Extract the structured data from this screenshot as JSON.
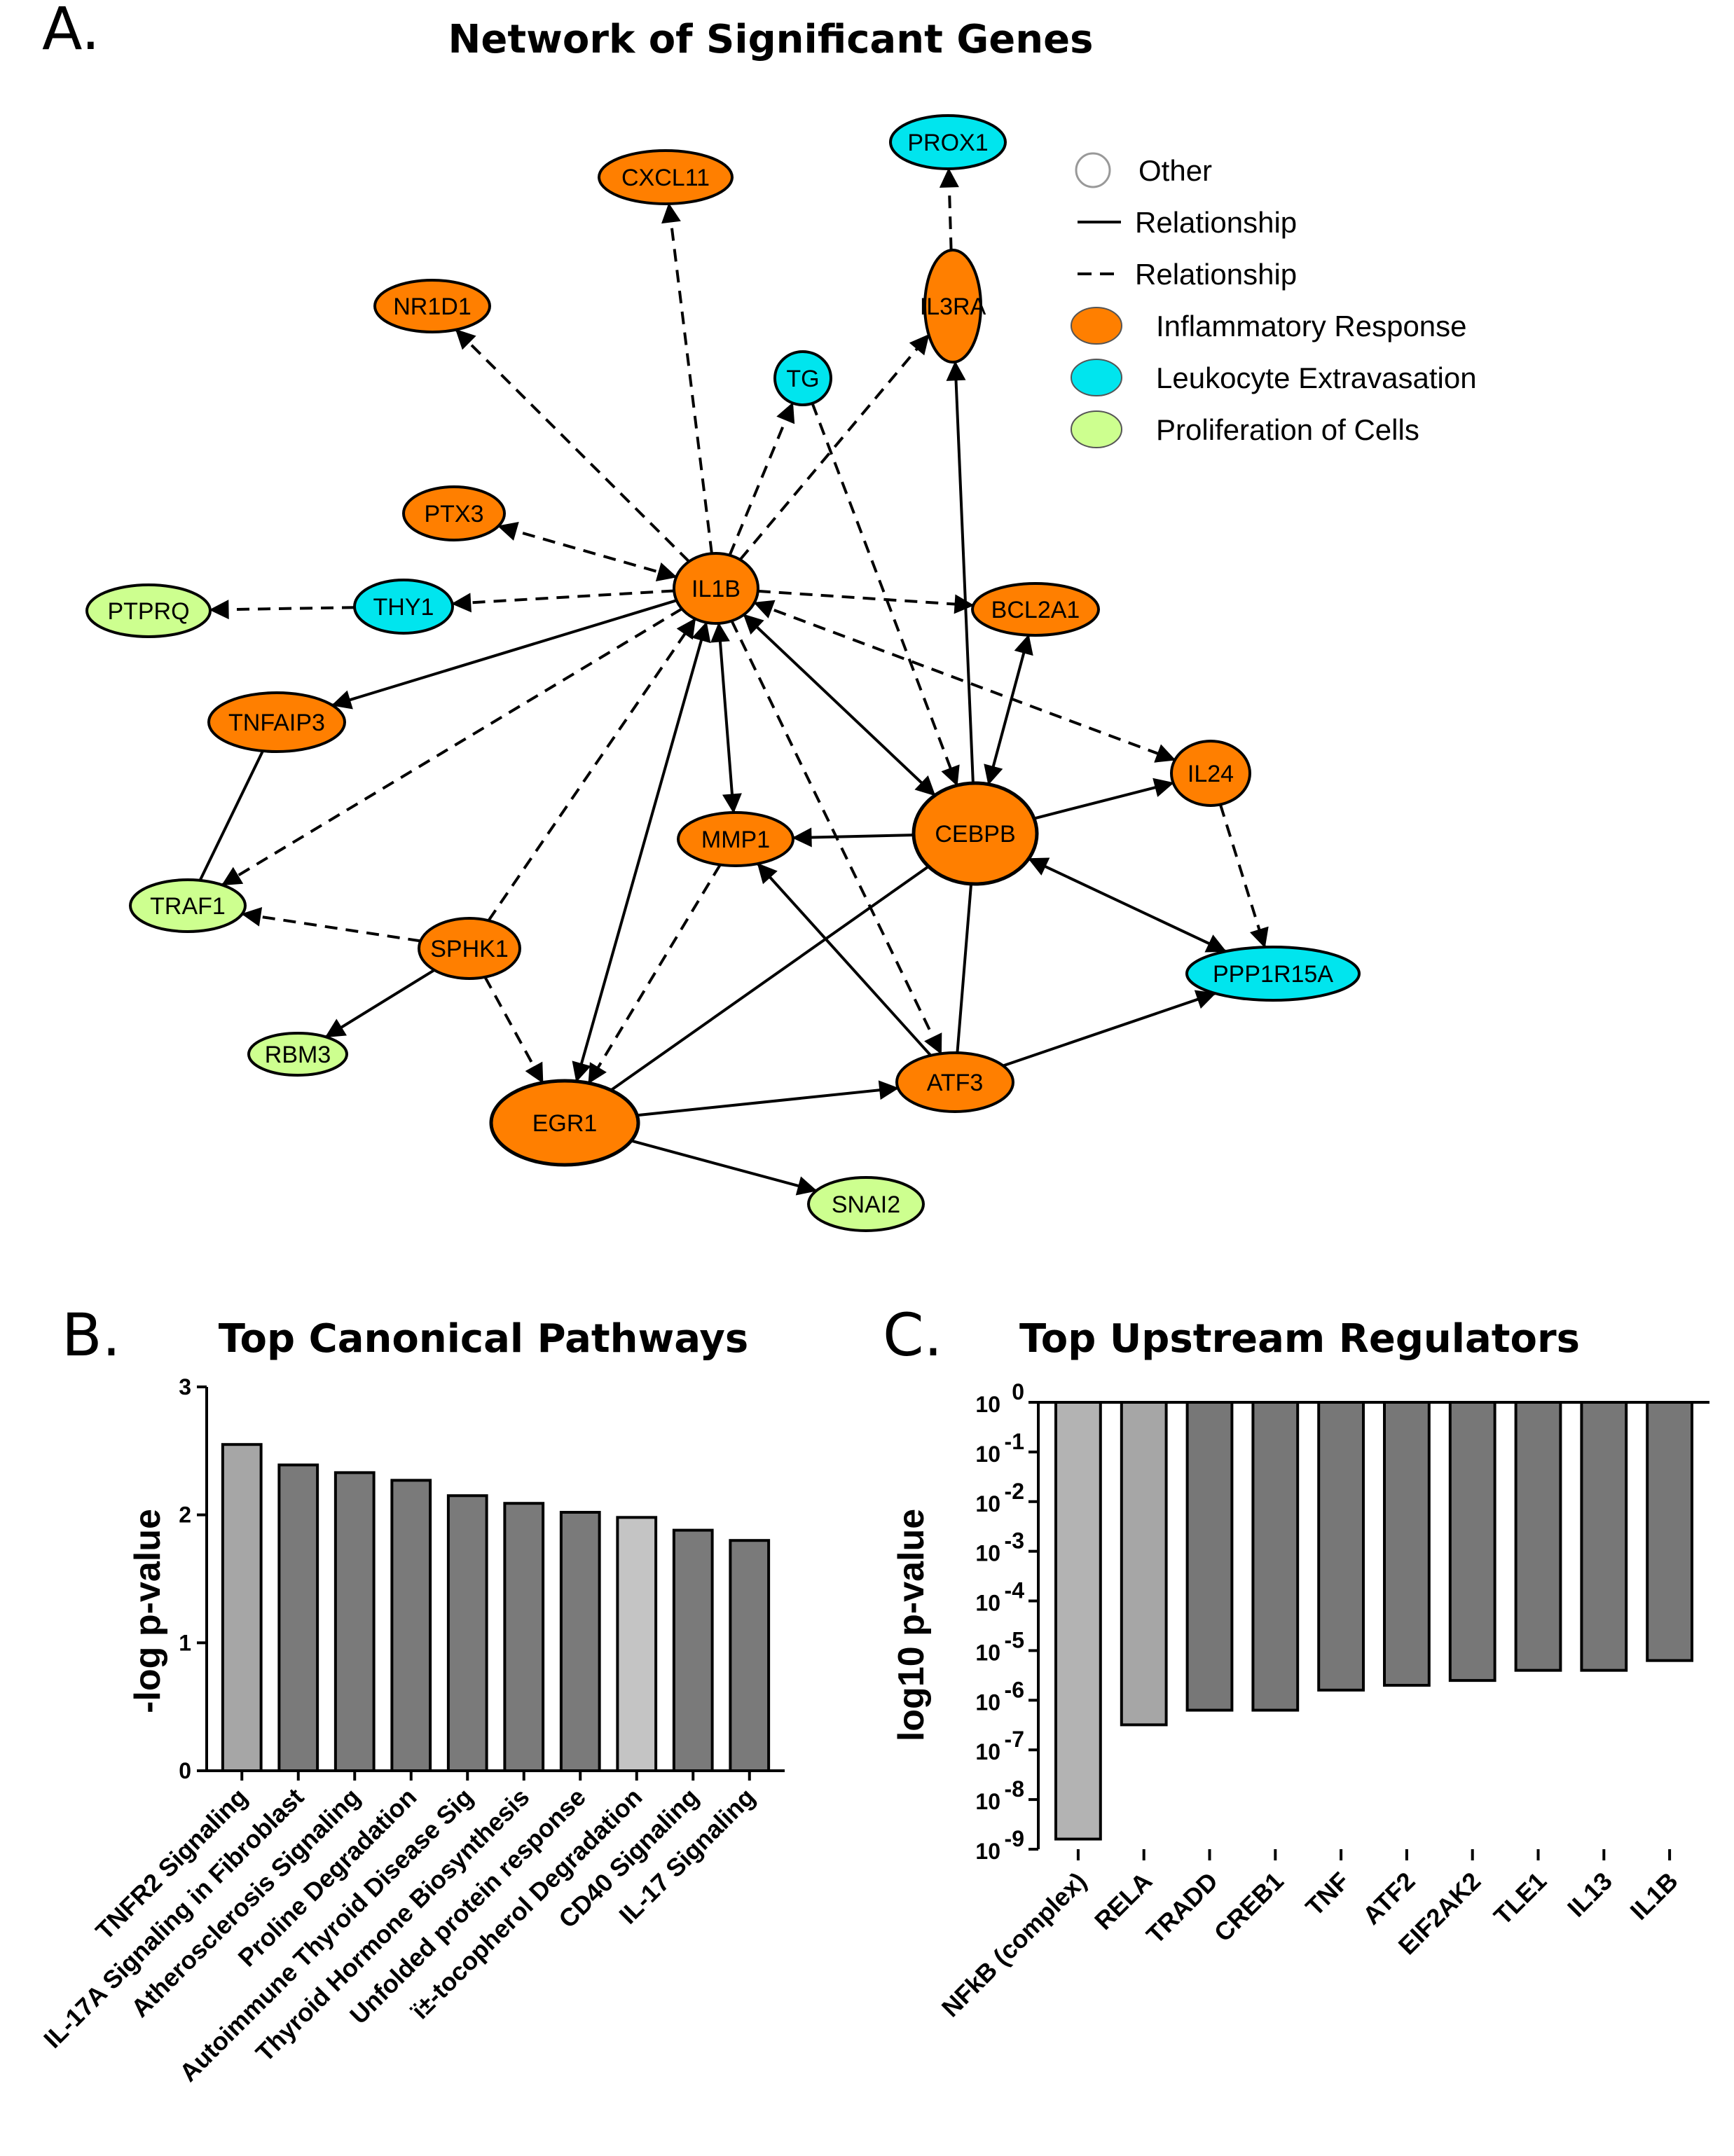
{
  "panel_a": {
    "letter": "A.",
    "title": "Network of Significant Genes",
    "legend": [
      {
        "key": "other",
        "label": "Other",
        "swatch": "circle-white"
      },
      {
        "key": "rel-solid",
        "label": "Relationship",
        "swatch": "line-solid"
      },
      {
        "key": "rel-dashed",
        "label": "Relationship",
        "swatch": "line-dashed"
      },
      {
        "key": "inflammatory",
        "label": "Inflammatory Response",
        "swatch": "#ff7f00"
      },
      {
        "key": "leukocyte",
        "label": "Leukocyte Extravasation",
        "swatch": "#00e5ee"
      },
      {
        "key": "proliferation",
        "label": "Proliferation of Cells",
        "swatch": "#cdff8f"
      }
    ],
    "nodes": [
      {
        "id": "PROX1",
        "label": "PROX1",
        "category": "leukocyte"
      },
      {
        "id": "CXCL11",
        "label": "CXCL11",
        "category": "inflammatory"
      },
      {
        "id": "IL3RA",
        "label": "IL3RA",
        "category": "inflammatory"
      },
      {
        "id": "NR1D1",
        "label": "NR1D1",
        "category": "inflammatory"
      },
      {
        "id": "TG",
        "label": "TG",
        "category": "leukocyte"
      },
      {
        "id": "PTX3",
        "label": "PTX3",
        "category": "inflammatory"
      },
      {
        "id": "IL1B",
        "label": "IL1B",
        "category": "inflammatory"
      },
      {
        "id": "PTPRQ",
        "label": "PTPRQ",
        "category": "proliferation"
      },
      {
        "id": "THY1",
        "label": "THY1",
        "category": "leukocyte"
      },
      {
        "id": "BCL2A1",
        "label": "BCL2A1",
        "category": "inflammatory"
      },
      {
        "id": "TNFAIP3",
        "label": "TNFAIP3",
        "category": "inflammatory"
      },
      {
        "id": "IL24",
        "label": "IL24",
        "category": "inflammatory"
      },
      {
        "id": "CEBPB",
        "label": "CEBPB",
        "category": "inflammatory"
      },
      {
        "id": "MMP1",
        "label": "MMP1",
        "category": "inflammatory"
      },
      {
        "id": "TRAF1",
        "label": "TRAF1",
        "category": "proliferation"
      },
      {
        "id": "SPHK1",
        "label": "SPHK1",
        "category": "inflammatory"
      },
      {
        "id": "PPP1R15A",
        "label": "PPP1R15A",
        "category": "leukocyte"
      },
      {
        "id": "RBM3",
        "label": "RBM3",
        "category": "proliferation"
      },
      {
        "id": "ATF3",
        "label": "ATF3",
        "category": "inflammatory"
      },
      {
        "id": "EGR1",
        "label": "EGR1",
        "category": "inflammatory"
      },
      {
        "id": "SNAI2",
        "label": "SNAI2",
        "category": "proliferation"
      }
    ],
    "edges": [
      {
        "from": "IL3RA",
        "to": "PROX1",
        "style": "dashed",
        "arrow": "end"
      },
      {
        "from": "IL1B",
        "to": "CXCL11",
        "style": "dashed",
        "arrow": "end"
      },
      {
        "from": "IL1B",
        "to": "NR1D1",
        "style": "dashed",
        "arrow": "end"
      },
      {
        "from": "IL1B",
        "to": "TG",
        "style": "dashed",
        "arrow": "end"
      },
      {
        "from": "IL1B",
        "to": "IL3RA",
        "style": "dashed",
        "arrow": "end"
      },
      {
        "from": "IL1B",
        "to": "PTX3",
        "style": "dashed",
        "arrow": "both"
      },
      {
        "from": "IL1B",
        "to": "THY1",
        "style": "dashed",
        "arrow": "end"
      },
      {
        "from": "THY1",
        "to": "PTPRQ",
        "style": "dashed",
        "arrow": "end"
      },
      {
        "from": "IL1B",
        "to": "BCL2A1",
        "style": "dashed",
        "arrow": "end"
      },
      {
        "from": "IL1B",
        "to": "IL24",
        "style": "dashed",
        "arrow": "both"
      },
      {
        "from": "IL1B",
        "to": "TNFAIP3",
        "style": "solid",
        "arrow": "end"
      },
      {
        "from": "IL1B",
        "to": "TRAF1",
        "style": "dashed",
        "arrow": "end"
      },
      {
        "from": "IL1B",
        "to": "MMP1",
        "style": "solid",
        "arrow": "both"
      },
      {
        "from": "IL1B",
        "to": "CEBPB",
        "style": "solid",
        "arrow": "both"
      },
      {
        "from": "IL1B",
        "to": "EGR1",
        "style": "solid",
        "arrow": "both"
      },
      {
        "from": "IL1B",
        "to": "ATF3",
        "style": "dashed",
        "arrow": "end"
      },
      {
        "from": "SPHK1",
        "to": "IL1B",
        "style": "dashed",
        "arrow": "end"
      },
      {
        "from": "TG",
        "to": "CEBPB",
        "style": "dashed",
        "arrow": "end"
      },
      {
        "from": "CEBPB",
        "to": "IL3RA",
        "style": "solid",
        "arrow": "end"
      },
      {
        "from": "CEBPB",
        "to": "BCL2A1",
        "style": "solid",
        "arrow": "both"
      },
      {
        "from": "CEBPB",
        "to": "IL24",
        "style": "solid",
        "arrow": "end"
      },
      {
        "from": "CEBPB",
        "to": "MMP1",
        "style": "solid",
        "arrow": "end"
      },
      {
        "from": "CEBPB",
        "to": "PPP1R15A",
        "style": "solid",
        "arrow": "both"
      },
      {
        "from": "CEBPB",
        "to": "EGR1",
        "style": "solid",
        "arrow": "none"
      },
      {
        "from": "CEBPB",
        "to": "ATF3",
        "style": "solid",
        "arrow": "none"
      },
      {
        "from": "IL24",
        "to": "PPP1R15A",
        "style": "dashed",
        "arrow": "end"
      },
      {
        "from": "TNFAIP3",
        "to": "TRAF1",
        "style": "solid",
        "arrow": "none"
      },
      {
        "from": "SPHK1",
        "to": "TRAF1",
        "style": "dashed",
        "arrow": "end"
      },
      {
        "from": "SPHK1",
        "to": "RBM3",
        "style": "solid",
        "arrow": "end"
      },
      {
        "from": "SPHK1",
        "to": "EGR1",
        "style": "dashed",
        "arrow": "end"
      },
      {
        "from": "MMP1",
        "to": "EGR1",
        "style": "dashed",
        "arrow": "end"
      },
      {
        "from": "ATF3",
        "to": "MMP1",
        "style": "solid",
        "arrow": "end"
      },
      {
        "from": "EGR1",
        "to": "ATF3",
        "style": "solid",
        "arrow": "end"
      },
      {
        "from": "ATF3",
        "to": "PPP1R15A",
        "style": "solid",
        "arrow": "end"
      },
      {
        "from": "EGR1",
        "to": "SNAI2",
        "style": "solid",
        "arrow": "end"
      }
    ]
  },
  "chart_data": [
    {
      "panel": "B.",
      "type": "bar",
      "title": "Top Canonical Pathways",
      "ylabel": "-log p-value",
      "ylim": [
        0,
        3
      ],
      "yticks": [
        "0",
        "1",
        "2",
        "3"
      ],
      "categories": [
        "TNFR2 Signaling",
        "IL-17A Signaling in Fibroblast",
        "Atherosclerosis Signaling",
        "Proline Degradation",
        "Autoimmune Thyroid Disease Sig",
        "Thyroid Hormone Biosynthesis",
        "Unfolded protein response",
        "ï±-tocopherol Degradation",
        "CD40 Signaling",
        "IL-17 Signaling"
      ],
      "values": [
        2.55,
        2.39,
        2.33,
        2.27,
        2.15,
        2.09,
        2.02,
        1.98,
        1.88,
        1.8
      ],
      "bar_colors": [
        "#a6a6a6",
        "#7a7a7a",
        "#7a7a7a",
        "#7a7a7a",
        "#7a7a7a",
        "#7a7a7a",
        "#7a7a7a",
        "#c4c4c4",
        "#7a7a7a",
        "#7a7a7a"
      ]
    },
    {
      "panel": "C.",
      "type": "bar",
      "title": "Top Upstream Regulators",
      "ylabel": "log10 p-value",
      "yscale": "log",
      "ylim": [
        1e-09,
        1
      ],
      "yticks": [
        {
          "base": "10",
          "exp": "0"
        },
        {
          "base": "10",
          "exp": "-1"
        },
        {
          "base": "10",
          "exp": "-2"
        },
        {
          "base": "10",
          "exp": "-3"
        },
        {
          "base": "10",
          "exp": "-4"
        },
        {
          "base": "10",
          "exp": "-5"
        },
        {
          "base": "10",
          "exp": "-6"
        },
        {
          "base": "10",
          "exp": "-7"
        },
        {
          "base": "10",
          "exp": "-8"
        },
        {
          "base": "10",
          "exp": "-9"
        }
      ],
      "categories": [
        "NFkB (complex)",
        "RELA",
        "TRADD",
        "CREB1",
        "TNF",
        "ATF2",
        "EIF2AK2",
        "TLE1",
        "IL13",
        "IL1B"
      ],
      "values": [
        1.6e-09,
        3.2e-07,
        6.3e-07,
        6.3e-07,
        1.6e-06,
        2e-06,
        2.5e-06,
        4e-06,
        4e-06,
        6.3e-06
      ],
      "bar_colors": [
        "#b3b3b3",
        "#a6a6a6",
        "#777777",
        "#777777",
        "#777777",
        "#777777",
        "#777777",
        "#777777",
        "#777777",
        "#777777"
      ]
    }
  ],
  "colors": {
    "inflammatory": "#ff7f00",
    "leukocyte": "#00e5ee",
    "proliferation": "#cdff8f",
    "other": "#ffffff"
  }
}
